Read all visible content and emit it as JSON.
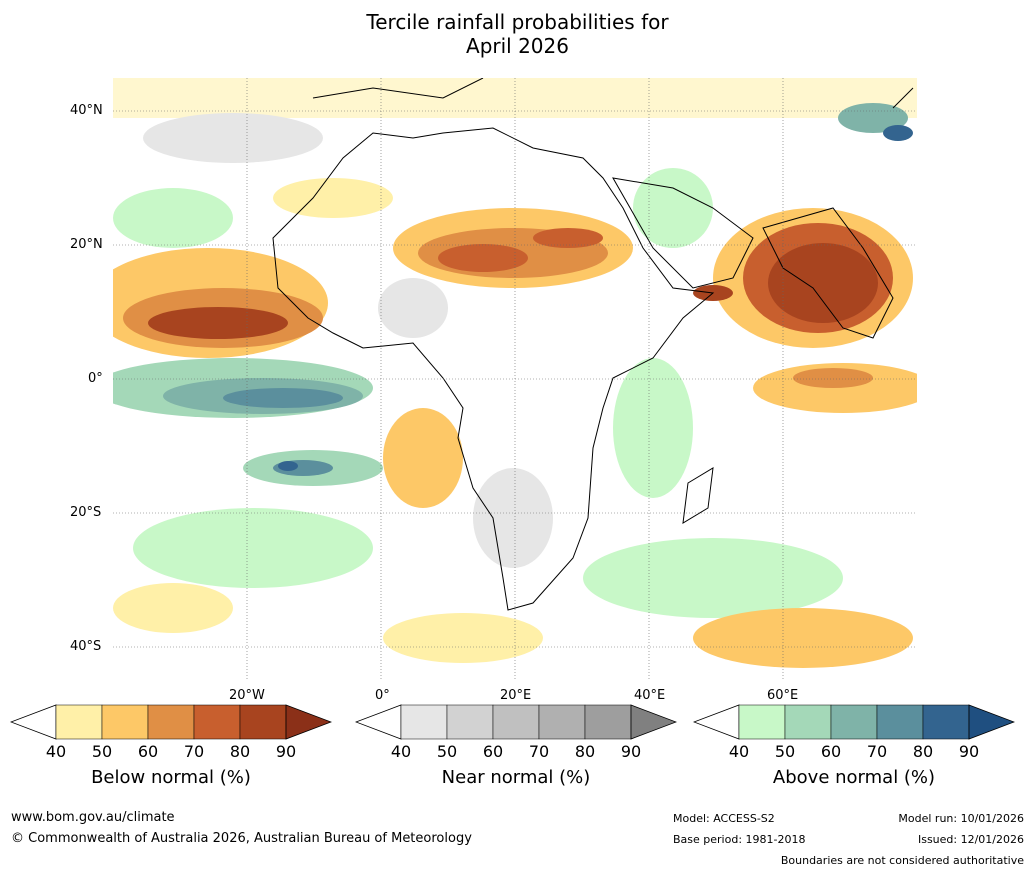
{
  "title_line1": "Tercile rainfall probabilities for",
  "title_line2": "April 2026",
  "lat_labels": [
    "40°N",
    "20°N",
    "0°",
    "20°S",
    "40°S"
  ],
  "lon_labels": [
    "20°W",
    "0°",
    "20°E",
    "40°E",
    "60°E"
  ],
  "colorbars": [
    {
      "label": "Below normal (%)",
      "ticks": [
        "40",
        "50",
        "60",
        "70",
        "80",
        "90"
      ],
      "colors": [
        "#fff0a8",
        "#fdc867",
        "#e08f45",
        "#c85f2e",
        "#a8441f",
        "#8b3018"
      ]
    },
    {
      "label": "Near normal (%)",
      "ticks": [
        "40",
        "50",
        "60",
        "70",
        "80",
        "90"
      ],
      "colors": [
        "#e6e6e6",
        "#d2d2d2",
        "#c0c0c0",
        "#b0b0b0",
        "#9e9e9e",
        "#808080"
      ]
    },
    {
      "label": "Above normal (%)",
      "ticks": [
        "40",
        "50",
        "60",
        "70",
        "80",
        "90"
      ],
      "colors": [
        "#c8f8c8",
        "#a4d8b8",
        "#7fb3a8",
        "#5b8f9d",
        "#33648f",
        "#1f4f80"
      ]
    }
  ],
  "footer": {
    "website": "www.bom.gov.au/climate",
    "copyright": "© Commonwealth of Australia 2026, Australian Bureau of Meteorology",
    "model": "Model: ACCESS-S2",
    "base_period": "Base period: 1981-2018",
    "model_run": "Model run: 10/01/2026",
    "issued": "Issued: 12/01/2026",
    "disclaimer": "Boundaries are not considered authoritative"
  }
}
